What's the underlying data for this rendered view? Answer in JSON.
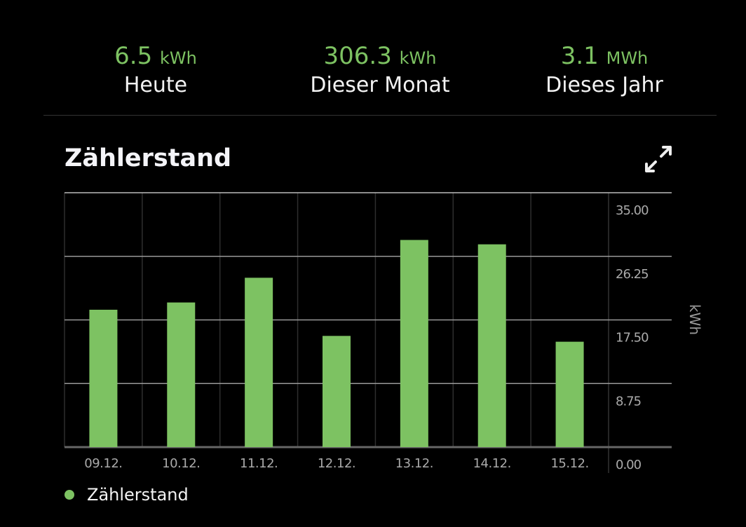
{
  "stats": [
    {
      "value": "6.5",
      "unit": "kWh",
      "label": "Heute"
    },
    {
      "value": "306.3",
      "unit": "kWh",
      "label": "Dieser Monat"
    },
    {
      "value": "3.1",
      "unit": "MWh",
      "label": "Dieses Jahr"
    }
  ],
  "title": "Zählerstand",
  "icons": {
    "expand": "expand-icon"
  },
  "colors": {
    "accent": "#7dc262"
  },
  "chart_data": {
    "type": "bar",
    "title": "Zählerstand",
    "categories": [
      "09.12.",
      "10.12.",
      "11.12.",
      "12.12.",
      "13.12.",
      "14.12.",
      "15.12."
    ],
    "values": [
      18.9,
      19.9,
      23.3,
      15.3,
      28.5,
      27.9,
      14.5
    ],
    "xlabel": "",
    "ylabel": "kWh",
    "ylim": [
      0,
      35
    ],
    "yticks": [
      "0.00",
      "8.75",
      "17.50",
      "26.25",
      "35.00"
    ],
    "ytick_values": [
      0,
      8.75,
      17.5,
      26.25,
      35
    ],
    "grid": true,
    "legend": {
      "entries": [
        "Zählerstand"
      ],
      "placement": "bottom-left"
    }
  }
}
